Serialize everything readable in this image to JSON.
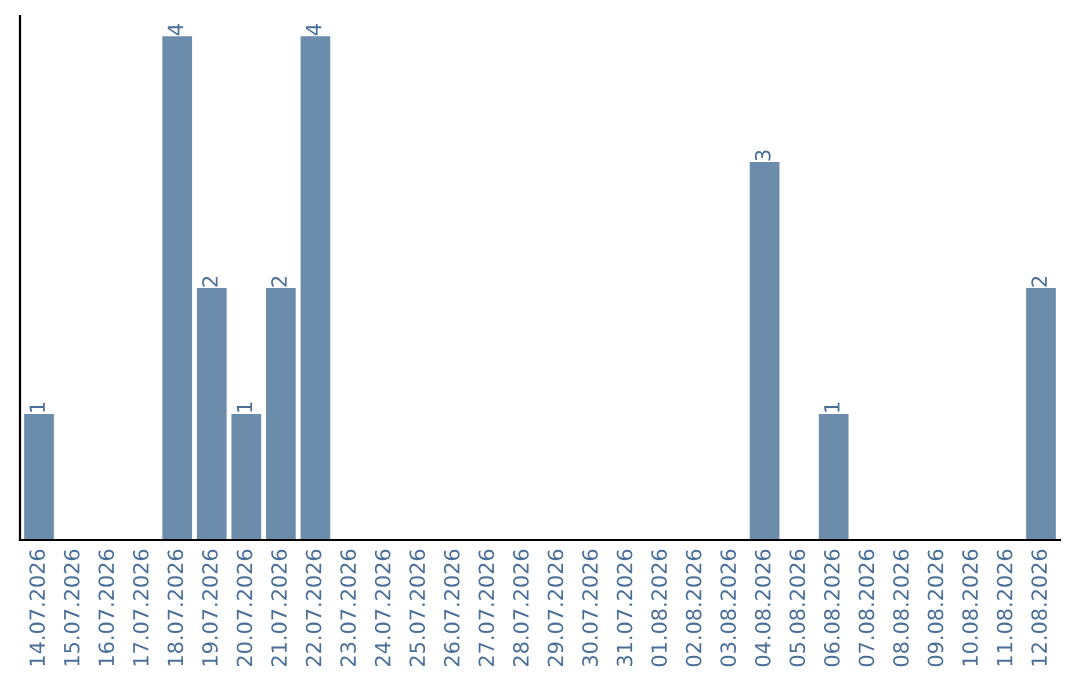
{
  "chart_data": {
    "type": "bar",
    "categories": [
      "14.07.2026",
      "15.07.2026",
      "16.07.2026",
      "17.07.2026",
      "18.07.2026",
      "19.07.2026",
      "20.07.2026",
      "21.07.2026",
      "22.07.2026",
      "23.07.2026",
      "24.07.2026",
      "25.07.2026",
      "26.07.2026",
      "27.07.2026",
      "28.07.2026",
      "29.07.2026",
      "30.07.2026",
      "31.07.2026",
      "01.08.2026",
      "02.08.2026",
      "03.08.2026",
      "04.08.2026",
      "05.08.2026",
      "06.08.2026",
      "07.08.2026",
      "08.08.2026",
      "09.08.2026",
      "10.08.2026",
      "11.08.2026",
      "12.08.2026"
    ],
    "values": [
      1,
      0,
      0,
      0,
      4,
      2,
      1,
      2,
      4,
      0,
      0,
      0,
      0,
      0,
      0,
      0,
      0,
      0,
      0,
      0,
      0,
      3,
      0,
      1,
      0,
      0,
      0,
      0,
      0,
      2
    ],
    "value_labels": [
      "1",
      null,
      null,
      null,
      "4",
      "2",
      "1",
      "2",
      "4",
      null,
      null,
      null,
      null,
      null,
      null,
      null,
      null,
      null,
      null,
      null,
      null,
      "3",
      null,
      "1",
      null,
      null,
      null,
      null,
      null,
      "2"
    ],
    "color": "#6b8cab",
    "tick_labels": "x",
    "grid": false,
    "legend": false
  }
}
